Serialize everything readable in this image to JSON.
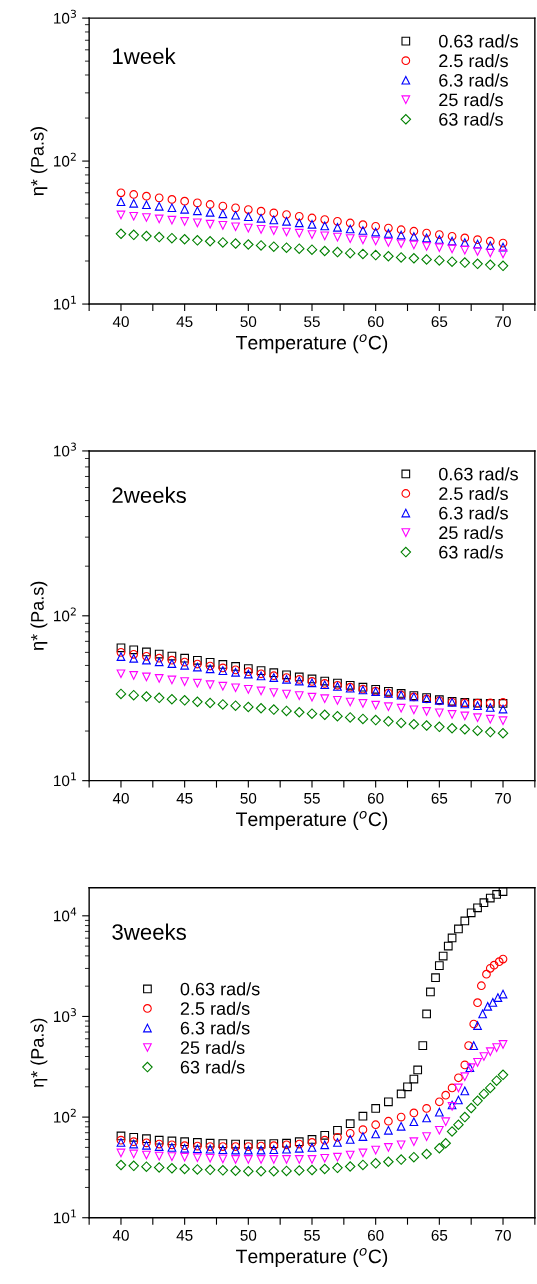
{
  "chart_data": [
    {
      "type": "scatter",
      "title": "1week",
      "xlabel": "Temperature ($^{o}$C)",
      "ylabel": "η* (Pa.s)",
      "log": "y",
      "legend": "upper right",
      "grid": false,
      "xlim": [
        37.5,
        72.5
      ],
      "xticks": [
        {
          "value": 37.5,
          "label": null
        },
        40,
        {
          "value": 42.5,
          "label": null
        },
        45,
        {
          "value": 47.5,
          "label": null
        },
        50,
        {
          "value": 52.5,
          "label": null
        },
        55,
        {
          "value": 57.5,
          "label": null
        },
        60,
        {
          "value": 62.5,
          "label": null
        },
        65,
        {
          "value": 67.5,
          "label": null
        },
        70,
        {
          "value": 72.5,
          "label": null
        }
      ],
      "ylim": [
        10,
        1000
      ],
      "yticks": [
        {
          "value": 10,
          "label": "10$^{1}$"
        },
        {
          "value": 100,
          "label": "10$^{2}$"
        },
        {
          "value": 1000,
          "label": "10$^{3}$"
        }
      ],
      "x": [
        40,
        41,
        42,
        43,
        44,
        45,
        46,
        47,
        48,
        49,
        50,
        51,
        52,
        53,
        54,
        55,
        56,
        57,
        58,
        59,
        60,
        61,
        62,
        63,
        64,
        65,
        66,
        67,
        68,
        69,
        70
      ],
      "series": [
        {
          "name": "0.63 rad/s",
          "color": "#000000",
          "marker": "square",
          "values": [
            null,
            null,
            null,
            null,
            null,
            null,
            null,
            null,
            null,
            null,
            null,
            null,
            null,
            null,
            null,
            null,
            null,
            null,
            null,
            null,
            null,
            null,
            null,
            null,
            null,
            null,
            null,
            null,
            null,
            null,
            null
          ]
        },
        {
          "name": "2.5 rad/s",
          "color": "#ff0000",
          "marker": "circle",
          "values": [
            60,
            58.4,
            56.8,
            55.3,
            53.9,
            52.4,
            51.0,
            49.7,
            48.4,
            47.1,
            45.8,
            44.6,
            43.4,
            42.3,
            41.1,
            40.0,
            39.0,
            37.9,
            36.9,
            35.9,
            35.0,
            34.0,
            33.1,
            32.3,
            31.4,
            30.6,
            29.8,
            29.0,
            28.2,
            27.5,
            26.7
          ]
        },
        {
          "name": "6.3 rad/s",
          "color": "#0000ff",
          "marker": "triangle",
          "values": [
            52,
            50.7,
            49.5,
            48.3,
            47.2,
            46.0,
            44.9,
            43.8,
            42.8,
            41.8,
            40.8,
            39.8,
            38.8,
            37.9,
            37.0,
            36.1,
            35.2,
            34.4,
            33.5,
            32.7,
            31.9,
            31.2,
            30.4,
            29.7,
            29.0,
            28.3,
            27.6,
            26.9,
            26.3,
            25.6,
            25.0
          ]
        },
        {
          "name": "25 rad/s",
          "color": "#ff00ff",
          "marker": "triangle-down",
          "values": [
            42,
            41.1,
            40.3,
            39.4,
            38.6,
            37.8,
            37.0,
            36.2,
            35.5,
            34.7,
            34.0,
            33.3,
            32.6,
            31.9,
            31.3,
            30.6,
            30.0,
            29.4,
            28.7,
            28.1,
            27.6,
            27.0,
            26.4,
            25.9,
            25.3,
            24.8,
            24.3,
            23.8,
            23.3,
            22.8,
            22.4
          ]
        },
        {
          "name": "63 rad/s",
          "color": "#008000",
          "marker": "diamond",
          "values": [
            31,
            30.5,
            29.9,
            29.4,
            28.9,
            28.4,
            27.9,
            27.5,
            27.0,
            26.5,
            26.1,
            25.7,
            25.2,
            24.8,
            24.4,
            24.0,
            23.5,
            23.1,
            22.7,
            22.4,
            22.0,
            21.6,
            21.2,
            20.9,
            20.5,
            20.2,
            19.8,
            19.5,
            19.1,
            18.8,
            18.5
          ]
        }
      ]
    },
    {
      "type": "scatter",
      "title": "2weeks",
      "xlabel": "Temperature ($^{o}$C)",
      "ylabel": "η* (Pa.s)",
      "log": "y",
      "legend": "upper right",
      "grid": false,
      "xlim": [
        37.5,
        72.5
      ],
      "xticks": [
        {
          "value": 37.5,
          "label": null
        },
        40,
        {
          "value": 42.5,
          "label": null
        },
        45,
        {
          "value": 47.5,
          "label": null
        },
        50,
        {
          "value": 52.5,
          "label": null
        },
        55,
        {
          "value": 57.5,
          "label": null
        },
        60,
        {
          "value": 62.5,
          "label": null
        },
        65,
        {
          "value": 67.5,
          "label": null
        },
        70,
        {
          "value": 72.5,
          "label": null
        }
      ],
      "ylim": [
        10,
        1000
      ],
      "yticks": [
        {
          "value": 10,
          "label": "10$^{1}$"
        },
        {
          "value": 100,
          "label": "10$^{2}$"
        },
        {
          "value": 1000,
          "label": "10$^{3}$"
        }
      ],
      "x": [
        40,
        41,
        42,
        43,
        44,
        45,
        46,
        47,
        48,
        49,
        50,
        51,
        52,
        53,
        54,
        55,
        56,
        57,
        58,
        59,
        60,
        61,
        62,
        63,
        64,
        65,
        66,
        67,
        68,
        69,
        70
      ],
      "series": [
        {
          "name": "0.63 rad/s",
          "color": "#000000",
          "marker": "square",
          "values": [
            64,
            62.2,
            60.4,
            58.6,
            57.0,
            55.3,
            53.7,
            52.2,
            50.7,
            49.3,
            47.9,
            46.5,
            45.2,
            43.9,
            42.6,
            41.4,
            40.2,
            39.1,
            37.9,
            36.9,
            35.8,
            34.8,
            33.8,
            32.8,
            31.9,
            31.0,
            30.3,
            29.8,
            29.5,
            29.4,
            29.4
          ]
        },
        {
          "name": "2.5 rad/s",
          "color": "#ff0000",
          "marker": "circle",
          "values": [
            60,
            58.4,
            56.8,
            55.3,
            53.8,
            52.4,
            51.0,
            49.6,
            48.3,
            47.0,
            45.8,
            44.5,
            43.3,
            42.2,
            41.1,
            40.0,
            38.9,
            37.9,
            36.9,
            35.9,
            34.9,
            34.0,
            33.1,
            32.2,
            31.3,
            30.5,
            30.0,
            29.6,
            29.5,
            29.6,
            29.8
          ]
        },
        {
          "name": "6.3 rad/s",
          "color": "#0000ff",
          "marker": "triangle",
          "values": [
            56.6,
            55.2,
            53.9,
            52.6,
            51.3,
            50.1,
            48.9,
            47.7,
            46.5,
            45.4,
            44.3,
            43.2,
            42.2,
            41.2,
            40.2,
            39.2,
            38.2,
            37.3,
            36.4,
            35.5,
            34.7,
            33.8,
            33.0,
            32.2,
            31.4,
            30.7,
            29.9,
            29.2,
            28.5,
            27.8,
            27.2
          ]
        },
        {
          "name": "25 rad/s",
          "color": "#ff00ff",
          "marker": "triangle-down",
          "values": [
            44.5,
            43.5,
            42.6,
            41.7,
            40.8,
            39.9,
            39.0,
            38.2,
            37.4,
            36.6,
            35.8,
            35.0,
            34.2,
            33.5,
            32.8,
            32.1,
            31.4,
            30.7,
            30.0,
            29.4,
            28.7,
            28.1,
            27.5,
            26.9,
            26.3,
            25.8,
            25.2,
            24.7,
            24.1,
            23.6,
            23.1
          ]
        },
        {
          "name": "63 rad/s",
          "color": "#008000",
          "marker": "diamond",
          "values": [
            33.6,
            33.0,
            32.4,
            31.8,
            31.2,
            30.7,
            30.1,
            29.6,
            29.0,
            28.5,
            28.0,
            27.5,
            27.0,
            26.5,
            26.0,
            25.5,
            25.1,
            24.6,
            24.2,
            23.7,
            23.3,
            22.9,
            22.4,
            22.0,
            21.6,
            21.2,
            20.8,
            20.5,
            20.1,
            19.7,
            19.4
          ]
        }
      ]
    },
    {
      "type": "scatter",
      "title": "3weeks",
      "xlabel": "Temperature ($^{o}$C)",
      "ylabel": "η* (Pa.s)",
      "log": "y",
      "legend": "center left",
      "grid": false,
      "xlim": [
        37.5,
        72.5
      ],
      "xticks": [
        {
          "value": 37.5,
          "label": null
        },
        40,
        {
          "value": 42.5,
          "label": null
        },
        45,
        {
          "value": 47.5,
          "label": null
        },
        50,
        {
          "value": 52.5,
          "label": null
        },
        55,
        {
          "value": 57.5,
          "label": null
        },
        60,
        {
          "value": 62.5,
          "label": null
        },
        65,
        {
          "value": 67.5,
          "label": null
        },
        70,
        {
          "value": 72.5,
          "label": null
        }
      ],
      "ylim": [
        10,
        19000
      ],
      "yticks": [
        {
          "value": 10,
          "label": "10$^{1}$"
        },
        {
          "value": 100,
          "label": "10$^{2}$"
        },
        {
          "value": 1000,
          "label": "10$^{3}$"
        },
        {
          "value": 10000,
          "label": "10$^{4}$"
        }
      ],
      "series": [
        {
          "name": "0.63 rad/s",
          "color": "#000000",
          "marker": "square",
          "x": [
            40,
            41,
            42,
            43,
            44,
            45,
            46,
            47,
            48,
            49,
            50,
            51,
            52,
            53,
            54,
            55,
            56,
            57,
            58,
            59,
            60,
            61,
            62,
            62.5,
            63,
            63.3,
            63.7,
            64,
            64.3,
            64.7,
            65,
            65.3,
            65.7,
            66,
            66.5,
            67,
            67.5,
            68,
            68.5,
            69,
            69.5,
            70
          ],
          "values": [
            65,
            63,
            61,
            59,
            58,
            57,
            56,
            55,
            54.5,
            54,
            54,
            54,
            54.5,
            55,
            57,
            60,
            66,
            74,
            86,
            102,
            122,
            142,
            170,
            200,
            239,
            294,
            513,
            1060,
            1750,
            2430,
            3200,
            3980,
            5000,
            6030,
            7400,
            8900,
            10700,
            12000,
            13500,
            15000,
            16300,
            17400
          ]
        },
        {
          "name": "2.5 rad/s",
          "color": "#ff0000",
          "marker": "circle",
          "x": [
            40,
            41,
            42,
            43,
            44,
            45,
            46,
            47,
            48,
            49,
            50,
            51,
            52,
            53,
            54,
            55,
            56,
            57,
            58,
            59,
            60,
            61,
            62,
            63,
            64,
            65,
            65.5,
            66,
            66.5,
            67,
            67.3,
            67.7,
            68,
            68.3,
            68.7,
            69,
            69.3,
            69.7,
            70
          ],
          "values": [
            59,
            57,
            55.5,
            54,
            53,
            52,
            51.5,
            51,
            51,
            51,
            51,
            51.5,
            52,
            53,
            54,
            56,
            59,
            63,
            69,
            75,
            84,
            91,
            100,
            110,
            122,
            142,
            165,
            195,
            246,
            330,
            513,
            841,
            1370,
            2020,
            2630,
            3010,
            3230,
            3500,
            3720
          ]
        },
        {
          "name": "6.3 rad/s",
          "color": "#0000ff",
          "marker": "triangle",
          "x": [
            40,
            41,
            42,
            43,
            44,
            45,
            46,
            47,
            48,
            49,
            50,
            51,
            52,
            53,
            54,
            55,
            56,
            57,
            58,
            59,
            60,
            61,
            62,
            63,
            64,
            65,
            66,
            66.5,
            67,
            67.4,
            67.7,
            68,
            68.4,
            68.8,
            69.2,
            69.6,
            70
          ],
          "values": [
            56,
            54,
            52.5,
            51,
            50,
            49,
            48.5,
            48,
            47.5,
            47,
            47,
            47,
            47.5,
            48,
            49,
            50,
            53,
            56,
            60,
            64,
            68,
            74,
            81,
            90,
            98,
            112,
            132,
            148,
            182,
            310,
            513,
            813,
            1060,
            1260,
            1380,
            1540,
            1670
          ]
        },
        {
          "name": "25 rad/s",
          "color": "#ff00ff",
          "marker": "triangle-down",
          "x": [
            40,
            41,
            42,
            43,
            44,
            45,
            46,
            47,
            48,
            49,
            50,
            51,
            52,
            53,
            54,
            55,
            56,
            57,
            58,
            59,
            60,
            61,
            62,
            63,
            64,
            65,
            65.5,
            66,
            66.5,
            67,
            67.5,
            68,
            68.5,
            69,
            69.5,
            70
          ],
          "values": [
            44,
            43,
            42,
            41,
            40.5,
            40,
            39.5,
            39,
            38.5,
            38,
            38,
            38,
            38,
            38,
            38,
            38,
            39,
            40,
            42,
            44,
            47,
            50,
            53,
            57,
            64,
            74,
            90,
            128,
            195,
            252,
            310,
            350,
            400,
            447,
            490,
            527
          ]
        },
        {
          "name": "63 rad/s",
          "color": "#008000",
          "marker": "diamond",
          "x": [
            40,
            41,
            42,
            43,
            44,
            45,
            46,
            47,
            48,
            49,
            50,
            51,
            52,
            53,
            54,
            55,
            56,
            57,
            58,
            59,
            60,
            61,
            62,
            63,
            64,
            65,
            65.5,
            66,
            66.5,
            67,
            67.5,
            68,
            68.5,
            69,
            69.5,
            70
          ],
          "values": [
            33.4,
            32.8,
            32.2,
            31.6,
            31,
            30.5,
            30.2,
            29.9,
            29.6,
            29.3,
            29,
            29,
            29,
            29.2,
            29.5,
            29.8,
            30.5,
            31.3,
            32.3,
            33.5,
            34.7,
            36,
            37.8,
            40,
            43,
            49,
            55,
            72,
            84,
            100,
            123,
            145,
            170,
            195,
            230,
            263
          ]
        }
      ]
    }
  ]
}
